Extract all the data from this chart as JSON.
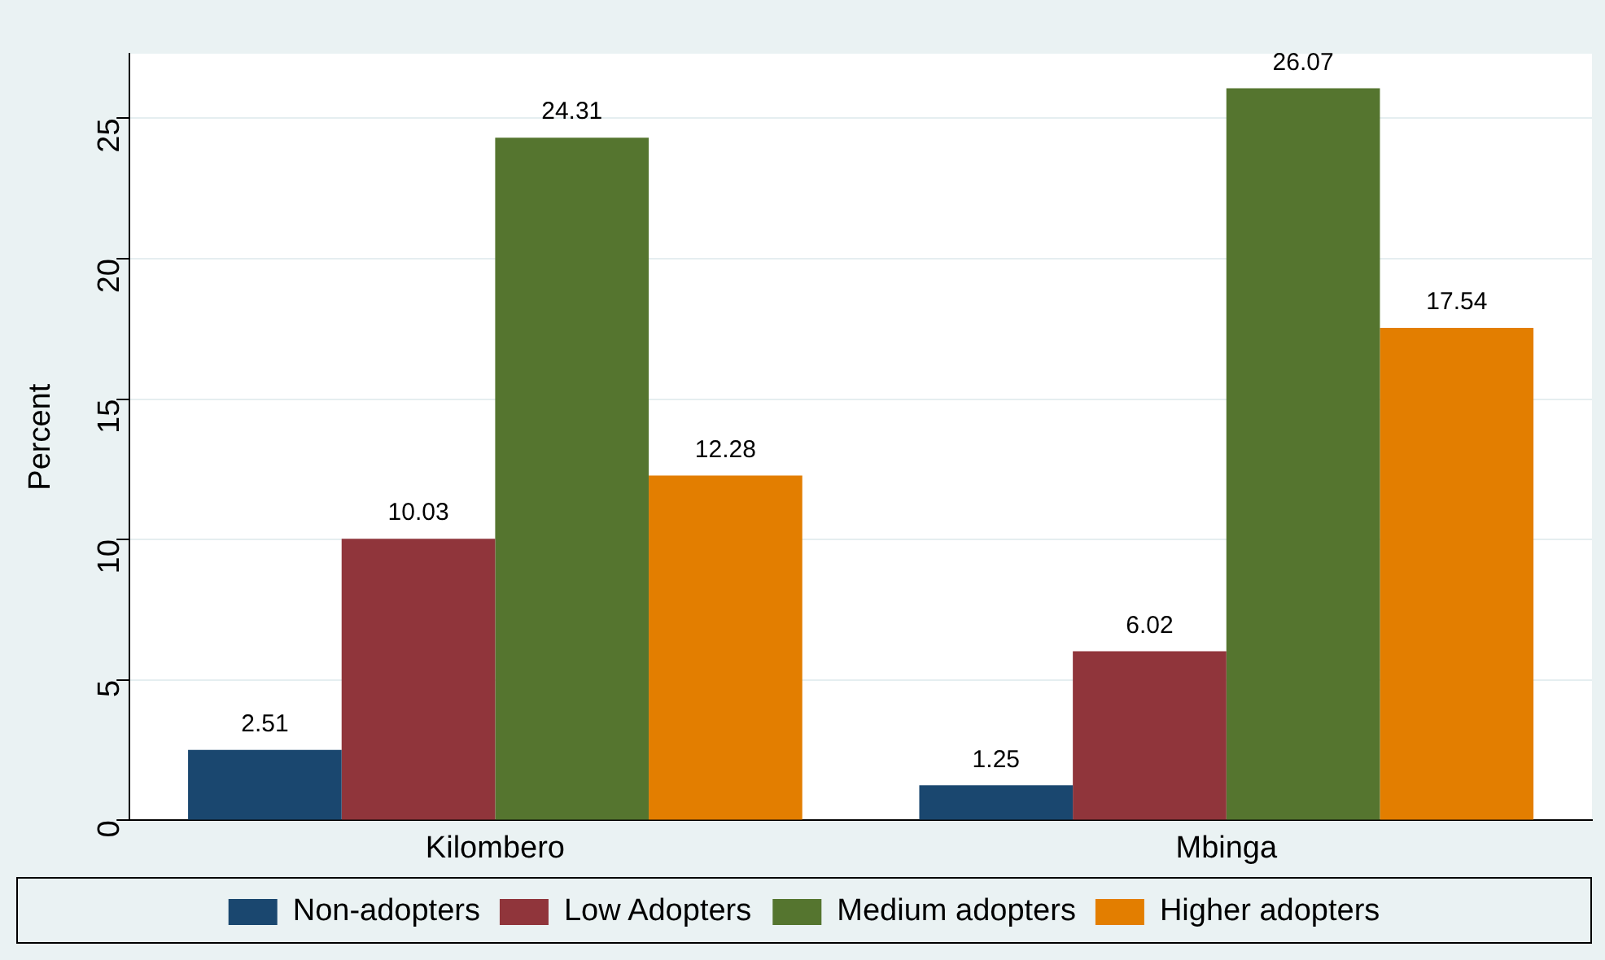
{
  "chart_data": {
    "type": "bar",
    "ylabel": "Percent",
    "categories": [
      "Kilombero",
      "Mbinga"
    ],
    "series": [
      {
        "name": "Non-adopters",
        "color": "#1a476f",
        "values": [
          2.51,
          1.25
        ]
      },
      {
        "name": "Low Adopters",
        "color": "#90353b",
        "values": [
          10.03,
          6.02
        ]
      },
      {
        "name": "Medium adopters",
        "color": "#55752f",
        "values": [
          24.31,
          26.07
        ]
      },
      {
        "name": "Higher adopters",
        "color": "#e37e00",
        "values": [
          12.28,
          17.54
        ]
      }
    ],
    "ylim": [
      0,
      27.3
    ],
    "yticks": [
      0,
      5,
      10,
      15,
      20,
      25
    ],
    "grid": "y",
    "legend": "bottom",
    "data_labels": true
  }
}
